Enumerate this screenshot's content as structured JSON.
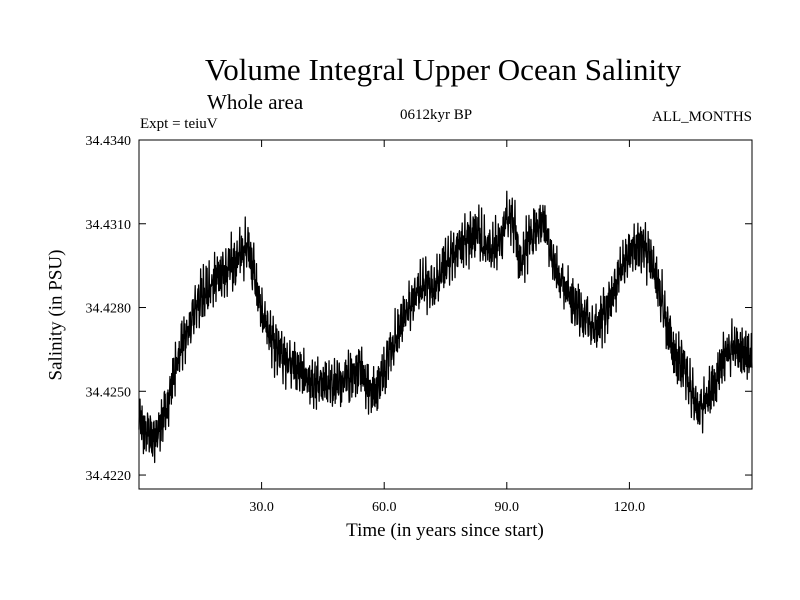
{
  "chart_data": {
    "type": "line",
    "title": "Volume Integral Upper Ocean Salinity",
    "subtitle": "Whole area",
    "experiment_label": "Expt = teiuV",
    "period_label": "0612kyr BP",
    "months_label": "ALL_MONTHS",
    "xlabel": "Time (in years since start)",
    "ylabel": "Salinity (in PSU)",
    "xlim": [
      0,
      150
    ],
    "ylim": [
      34.4215,
      34.434
    ],
    "xticks": [
      30,
      60,
      90,
      120
    ],
    "xtick_labels": [
      "30.0",
      "60.0",
      "90.0",
      "120.0"
    ],
    "yticks": [
      34.422,
      34.425,
      34.428,
      34.431,
      34.434
    ],
    "ytick_labels": [
      "34.4220",
      "34.4250",
      "34.4280",
      "34.4310",
      "34.4340"
    ],
    "sampling": "monthly",
    "series": [
      {
        "name": "salinity",
        "color": "#000000",
        "anchor_x": [
          0,
          2,
          4,
          5,
          7,
          10,
          15,
          20,
          25,
          27,
          29,
          30,
          33,
          36,
          40,
          45,
          50,
          54,
          57,
          58,
          60,
          65,
          70,
          72,
          75,
          78,
          80,
          83,
          85,
          88,
          90,
          92,
          93,
          95,
          97,
          99,
          102,
          105,
          108,
          110,
          112,
          115,
          118,
          122,
          125,
          128,
          131,
          134,
          137,
          140,
          143,
          146,
          148,
          150
        ],
        "anchor_y": [
          34.424,
          34.4235,
          34.4233,
          34.4237,
          34.4245,
          34.4265,
          34.4283,
          34.4292,
          34.4299,
          34.4302,
          34.4285,
          34.4277,
          34.4267,
          34.4262,
          34.4256,
          34.4252,
          34.4254,
          34.4258,
          34.4249,
          34.4251,
          34.4258,
          34.4278,
          34.429,
          34.4285,
          34.4297,
          34.43,
          34.4305,
          34.4307,
          34.4301,
          34.4302,
          34.4312,
          34.431,
          34.4294,
          34.4303,
          34.4308,
          34.431,
          34.4293,
          34.4285,
          34.4278,
          34.4275,
          34.4272,
          34.4282,
          34.4293,
          34.4303,
          34.4298,
          34.4282,
          34.4262,
          34.4256,
          34.4242,
          34.425,
          34.4262,
          34.4266,
          34.4264,
          34.4262
        ],
        "variability_psu": 0.0009
      }
    ]
  }
}
